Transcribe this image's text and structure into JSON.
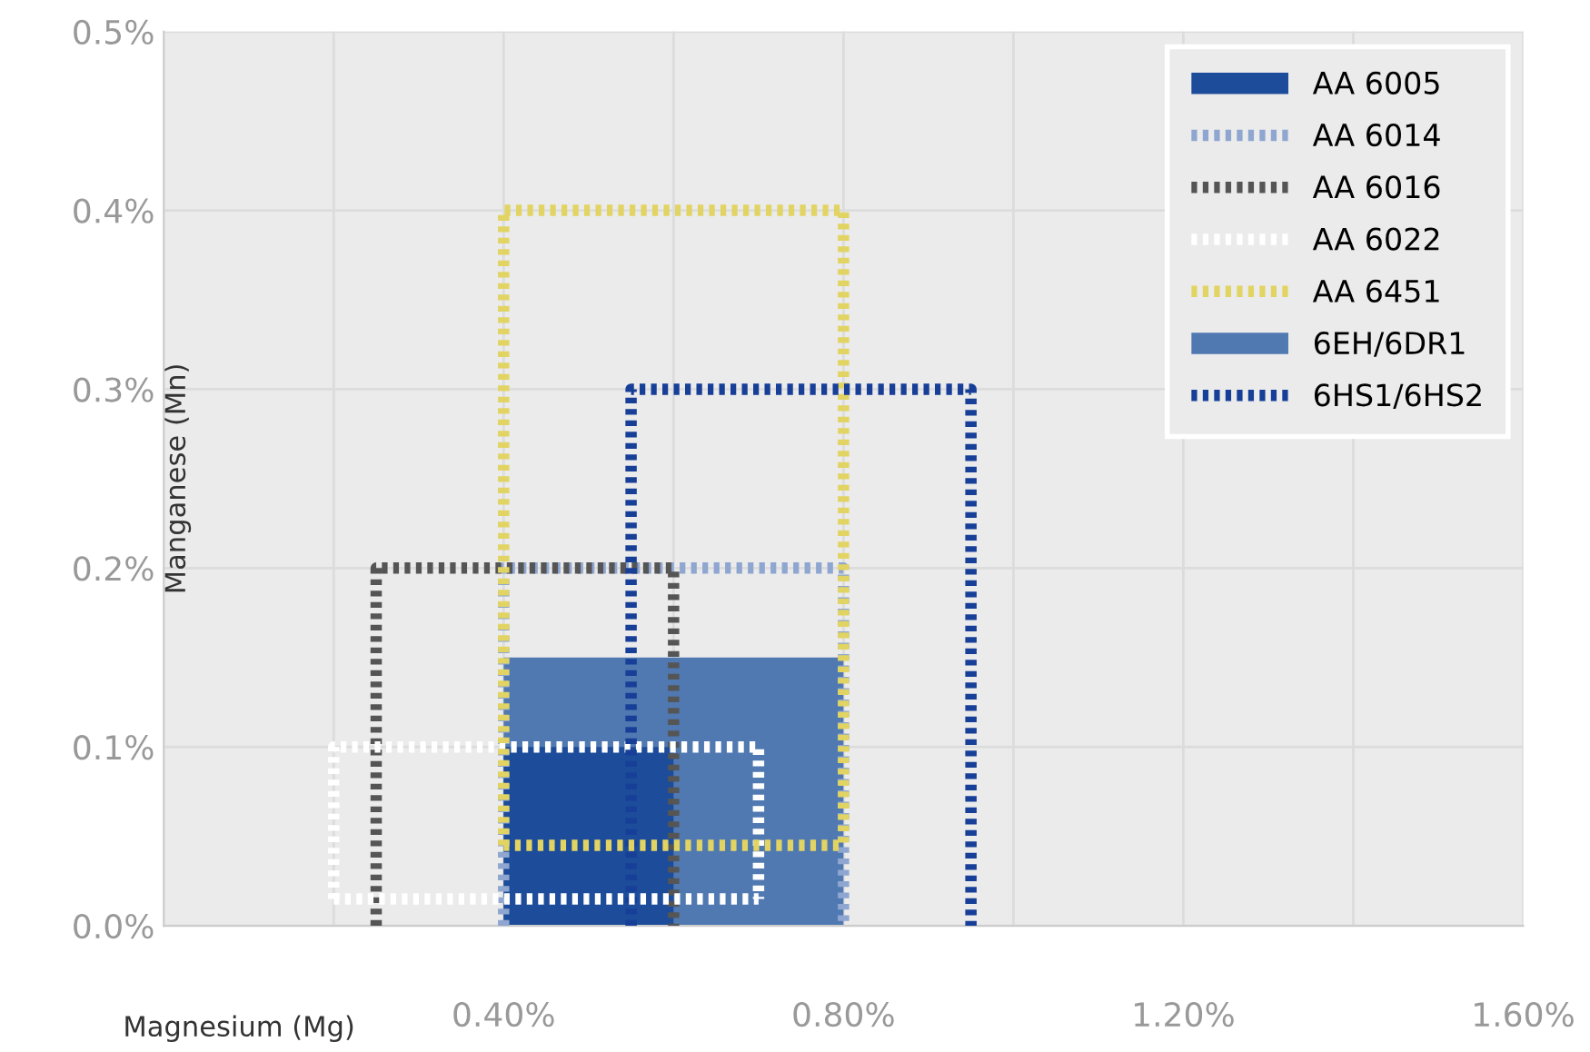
{
  "chart_data": {
    "type": "line",
    "xlabel": "Magnesium (Mg)",
    "ylabel": "Manganese (Mn)",
    "xlim": [
      0,
      1.6
    ],
    "ylim": [
      0,
      0.5
    ],
    "xticks": [
      {
        "value": 0.2,
        "label": null
      },
      {
        "value": 0.4,
        "label": "0.40%"
      },
      {
        "value": 0.6,
        "label": null
      },
      {
        "value": 0.8,
        "label": "0.80%"
      },
      {
        "value": 1.0,
        "label": null
      },
      {
        "value": 1.2,
        "label": "1.20%"
      },
      {
        "value": 1.4,
        "label": null
      },
      {
        "value": 1.6,
        "label": "1.60%"
      }
    ],
    "yticks": [
      {
        "value": 0,
        "label": "0.0%"
      },
      {
        "value": 0.1,
        "label": "0.1%"
      },
      {
        "value": 0.2,
        "label": "0.2%"
      },
      {
        "value": 0.3,
        "label": "0.3%"
      },
      {
        "value": 0.4,
        "label": "0.4%"
      },
      {
        "value": 0.5,
        "label": "0.5%"
      }
    ],
    "grid": true,
    "legend": "top right",
    "line_style": "dotted",
    "series": [
      {
        "name": "AA 6005",
        "type": "area",
        "color": "#1c4c9a",
        "x": [
          0.4,
          0.6
        ],
        "values": [
          0.1,
          0.1
        ]
      },
      {
        "name": "AA 6014",
        "color": "#8ea6d0",
        "x": [
          0.4,
          0.4,
          0.8,
          0.8
        ],
        "values": [
          0,
          0.2,
          0.2,
          0
        ]
      },
      {
        "name": "AA 6016",
        "color": "#555555",
        "x": [
          0.25,
          0.25,
          0.6,
          0.6
        ],
        "values": [
          0,
          0.2,
          0.2,
          0
        ]
      },
      {
        "name": "AA 6022",
        "color": "#ffffff",
        "x": [
          0.2,
          0.2,
          0.7,
          0.7
        ],
        "values": [
          0.015,
          0.1,
          0.1,
          0.015
        ]
      },
      {
        "name": "AA 6451",
        "color": "#e2d462",
        "x": [
          0.4,
          0.4,
          0.8,
          0.8
        ],
        "values": [
          0.045,
          0.4,
          0.4,
          0.045
        ]
      },
      {
        "name": "6EH/6DR1",
        "type": "area",
        "color": "#5079b2",
        "x": [
          0.4,
          0.8
        ],
        "values": [
          0.15,
          0.15
        ]
      },
      {
        "name": "6HS1/6HS2",
        "color": "#173f98",
        "x": [
          0.55,
          0.55,
          0.95,
          0.95
        ],
        "values": [
          0,
          0.3,
          0.3,
          0
        ]
      },
      {
        "color": "#ffffff",
        "x": [
          0.2,
          0.7
        ],
        "values": [
          0.015,
          0.015
        ]
      },
      {
        "color": "#e2d462",
        "x": [
          0.4,
          0.8
        ],
        "values": [
          0.045,
          0.045
        ]
      }
    ]
  }
}
